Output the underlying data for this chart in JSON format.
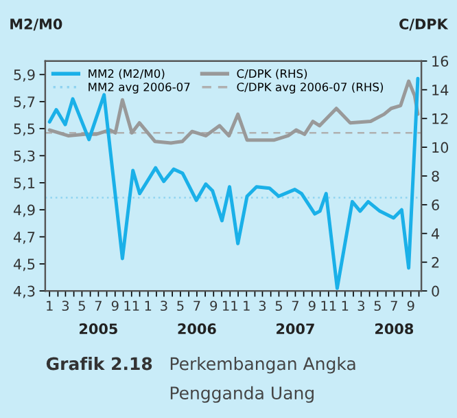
{
  "chart_data": {
    "type": "line",
    "title": "Perkembangan Angka Pengganda Uang",
    "ylabel": "M2/M0",
    "y2label": "C/DPK",
    "annotations": [
      "Grafik 2.18",
      "2005",
      "2006",
      "2007",
      "2008"
    ],
    "xlim": [
      "2004-12-16",
      "2008-10-10"
    ],
    "xticks": [
      {
        "value": "2005-01",
        "label": "1"
      },
      {
        "value": "2005-02",
        "label": null
      },
      {
        "value": "2005-03",
        "label": "3"
      },
      {
        "value": "2005-04",
        "label": null
      },
      {
        "value": "2005-05",
        "label": "5"
      },
      {
        "value": "2005-06",
        "label": null
      },
      {
        "value": "2005-07",
        "label": "7"
      },
      {
        "value": "2005-08",
        "label": null
      },
      {
        "value": "2005-09",
        "label": "9"
      },
      {
        "value": "2005-10",
        "label": null
      },
      {
        "value": "2005-11",
        "label": "11"
      },
      {
        "value": "2005-12",
        "label": null
      },
      {
        "value": "2006-01",
        "label": "1"
      },
      {
        "value": "2006-02",
        "label": null
      },
      {
        "value": "2006-03",
        "label": "3"
      },
      {
        "value": "2006-04",
        "label": null
      },
      {
        "value": "2006-05",
        "label": "5"
      },
      {
        "value": "2006-06",
        "label": null
      },
      {
        "value": "2006-07",
        "label": "7"
      },
      {
        "value": "2006-08",
        "label": null
      },
      {
        "value": "2006-09",
        "label": "9"
      },
      {
        "value": "2006-10",
        "label": null
      },
      {
        "value": "2006-11",
        "label": "11"
      },
      {
        "value": "2006-12",
        "label": null
      },
      {
        "value": "2007-01",
        "label": "1"
      },
      {
        "value": "2007-02",
        "label": null
      },
      {
        "value": "2007-03",
        "label": "3"
      },
      {
        "value": "2007-04",
        "label": null
      },
      {
        "value": "2007-05",
        "label": "5"
      },
      {
        "value": "2007-06",
        "label": null
      },
      {
        "value": "2007-07",
        "label": "7"
      },
      {
        "value": "2007-08",
        "label": null
      },
      {
        "value": "2007-09",
        "label": "9"
      },
      {
        "value": "2007-10",
        "label": null
      },
      {
        "value": "2007-11",
        "label": "11"
      },
      {
        "value": "2007-12",
        "label": null
      },
      {
        "value": "2008-01",
        "label": "1"
      },
      {
        "value": "2008-02",
        "label": null
      },
      {
        "value": "2008-03",
        "label": "3"
      },
      {
        "value": "2008-04",
        "label": null
      },
      {
        "value": "2008-05",
        "label": "5"
      },
      {
        "value": "2008-06",
        "label": null
      },
      {
        "value": "2008-07",
        "label": "7"
      },
      {
        "value": "2008-08",
        "label": null
      },
      {
        "value": "2008-09",
        "label": "9"
      },
      {
        "value": "2008-10",
        "label": null
      }
    ],
    "ylim": [
      4.3,
      6.0
    ],
    "yticks": [
      {
        "value": 4.3,
        "label": "4,3"
      },
      {
        "value": 4.5,
        "label": "4,5"
      },
      {
        "value": 4.7,
        "label": "4,7"
      },
      {
        "value": 4.9,
        "label": "4,9"
      },
      {
        "value": 5.1,
        "label": "5,1"
      },
      {
        "value": 5.3,
        "label": "5,3"
      },
      {
        "value": 5.5,
        "label": "5,5"
      },
      {
        "value": 5.7,
        "label": "5,7"
      },
      {
        "value": 5.9,
        "label": "5,9"
      }
    ],
    "y2lim": [
      0,
      16
    ],
    "y2ticks": [
      0,
      2,
      4,
      6,
      8,
      10,
      12,
      14,
      16
    ],
    "grid": false,
    "legend": "top left",
    "ref_lines": [
      {
        "axis": "y",
        "value": 4.99,
        "label": "MM2 avg 2006-07",
        "color": "#8fd3f0",
        "line_style": "dotted"
      },
      {
        "axis": "y2",
        "value": 11.0,
        "label": "C/DPK avg 2006-07 (RHS)",
        "color": "#b0b0b0",
        "line_style": "dashed"
      }
    ],
    "series": [
      {
        "name": "MM2 (M2/M0)",
        "color": "#1ab0e8",
        "x": [
          "2005-01-01",
          "2005-01-26",
          "2005-02-28",
          "2005-03-28",
          "2005-05-27",
          "2005-07-22",
          "2005-09-28",
          "2005-11-06",
          "2005-12-01",
          "2006-01-29",
          "2006-02-28",
          "2006-04-06",
          "2006-05-09",
          "2006-06-29",
          "2006-08-03",
          "2006-08-28",
          "2006-10-02",
          "2006-10-30",
          "2006-11-30",
          "2007-01-03",
          "2007-02-07",
          "2007-03-27",
          "2007-04-30",
          "2007-06-29",
          "2007-07-24",
          "2007-09-11",
          "2007-09-30",
          "2007-10-23",
          "2007-12-03",
          "2008-01-28",
          "2008-02-26",
          "2008-03-27",
          "2008-05-09",
          "2008-06-29",
          "2008-07-29",
          "2008-08-24",
          "2008-09-27"
        ],
        "values": [
          5.55,
          5.64,
          5.53,
          5.72,
          5.42,
          5.75,
          4.54,
          5.19,
          5.02,
          5.21,
          5.11,
          5.2,
          5.17,
          4.97,
          5.09,
          5.04,
          4.82,
          5.07,
          4.65,
          5.0,
          5.07,
          5.06,
          5.0,
          5.05,
          5.02,
          4.87,
          4.89,
          5.02,
          4.32,
          4.96,
          4.89,
          4.96,
          4.89,
          4.84,
          4.9,
          4.47,
          5.87
        ]
      },
      {
        "name": "C/DPK (RHS)",
        "color": "#999999",
        "axis": "y2",
        "x": [
          "2005-01-01",
          "2005-03-11",
          "2005-05-12",
          "2005-06-22",
          "2005-08-12",
          "2005-09-02",
          "2005-09-28",
          "2005-11-02",
          "2005-11-30",
          "2006-01-27",
          "2006-03-27",
          "2006-05-08",
          "2006-06-13",
          "2006-08-03",
          "2006-09-23",
          "2006-10-28",
          "2006-11-30",
          "2007-01-03",
          "2007-04-14",
          "2007-06-04",
          "2007-07-04",
          "2007-08-04",
          "2007-09-04",
          "2007-09-29",
          "2007-11-30",
          "2008-01-20",
          "2008-04-05",
          "2008-05-25",
          "2008-06-20",
          "2008-07-25",
          "2008-08-24",
          "2008-09-15",
          "2008-09-27"
        ],
        "values": [
          11.2,
          10.8,
          10.9,
          10.9,
          11.2,
          11.0,
          13.3,
          11.0,
          11.7,
          10.4,
          10.3,
          10.4,
          11.1,
          10.8,
          11.5,
          10.8,
          12.3,
          10.5,
          10.5,
          10.8,
          11.2,
          10.9,
          11.8,
          11.5,
          12.7,
          11.7,
          11.8,
          12.3,
          12.7,
          12.9,
          14.6,
          13.6,
          12.3
        ]
      }
    ]
  }
}
